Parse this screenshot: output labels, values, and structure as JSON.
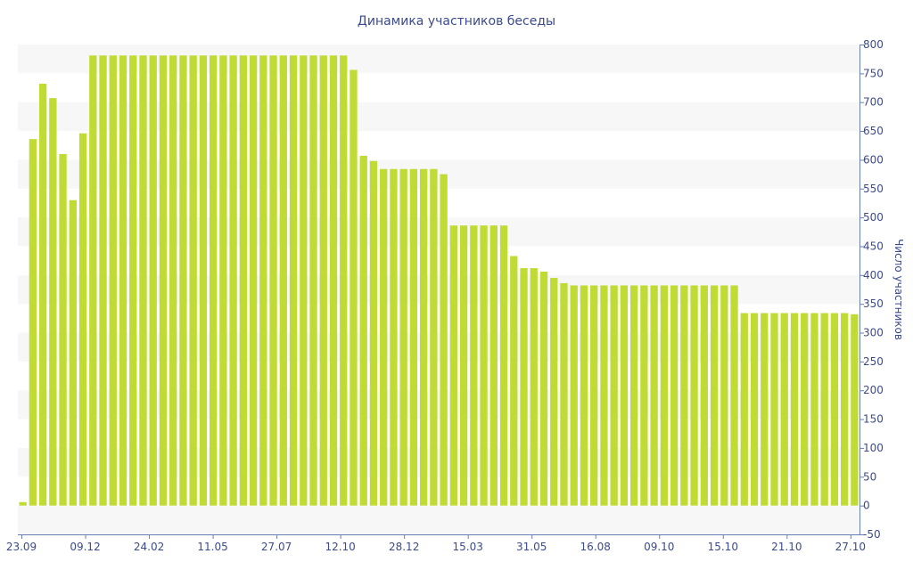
{
  "chart_data": {
    "type": "bar",
    "title": "Динамика участников беседы",
    "xlabel": "",
    "ylabel": "Число участников",
    "ylim": [
      -50,
      800
    ],
    "yticks": [
      -50,
      0,
      50,
      100,
      150,
      200,
      250,
      300,
      350,
      400,
      450,
      500,
      550,
      600,
      650,
      700,
      750,
      800
    ],
    "y_axis_position": "right",
    "grid": "alternating horizontal bands",
    "bar_color": "#c0dc34",
    "band_color": "#f7f7f7",
    "text_color": "#3b4b8c",
    "axis_color": "#6a7fb5",
    "x_tick_labels": [
      "23.09",
      "09.12",
      "24.02",
      "11.05",
      "27.07",
      "12.10",
      "28.12",
      "15.03",
      "31.05",
      "16.08",
      "09.10",
      "15.10",
      "21.10",
      "27.10"
    ],
    "values": [
      6,
      636,
      732,
      707,
      610,
      530,
      646,
      781,
      781,
      781,
      781,
      781,
      781,
      781,
      781,
      781,
      781,
      781,
      781,
      781,
      781,
      781,
      781,
      781,
      781,
      781,
      781,
      781,
      781,
      781,
      781,
      781,
      781,
      756,
      607,
      598,
      584,
      584,
      584,
      584,
      584,
      584,
      575,
      486,
      486,
      486,
      486,
      486,
      486,
      433,
      412,
      412,
      406,
      395,
      386,
      382,
      382,
      382,
      382,
      382,
      382,
      382,
      382,
      382,
      382,
      382,
      382,
      382,
      382,
      382,
      382,
      382,
      334,
      334,
      334,
      334,
      334,
      334,
      334,
      334,
      334,
      334,
      334,
      332
    ]
  }
}
